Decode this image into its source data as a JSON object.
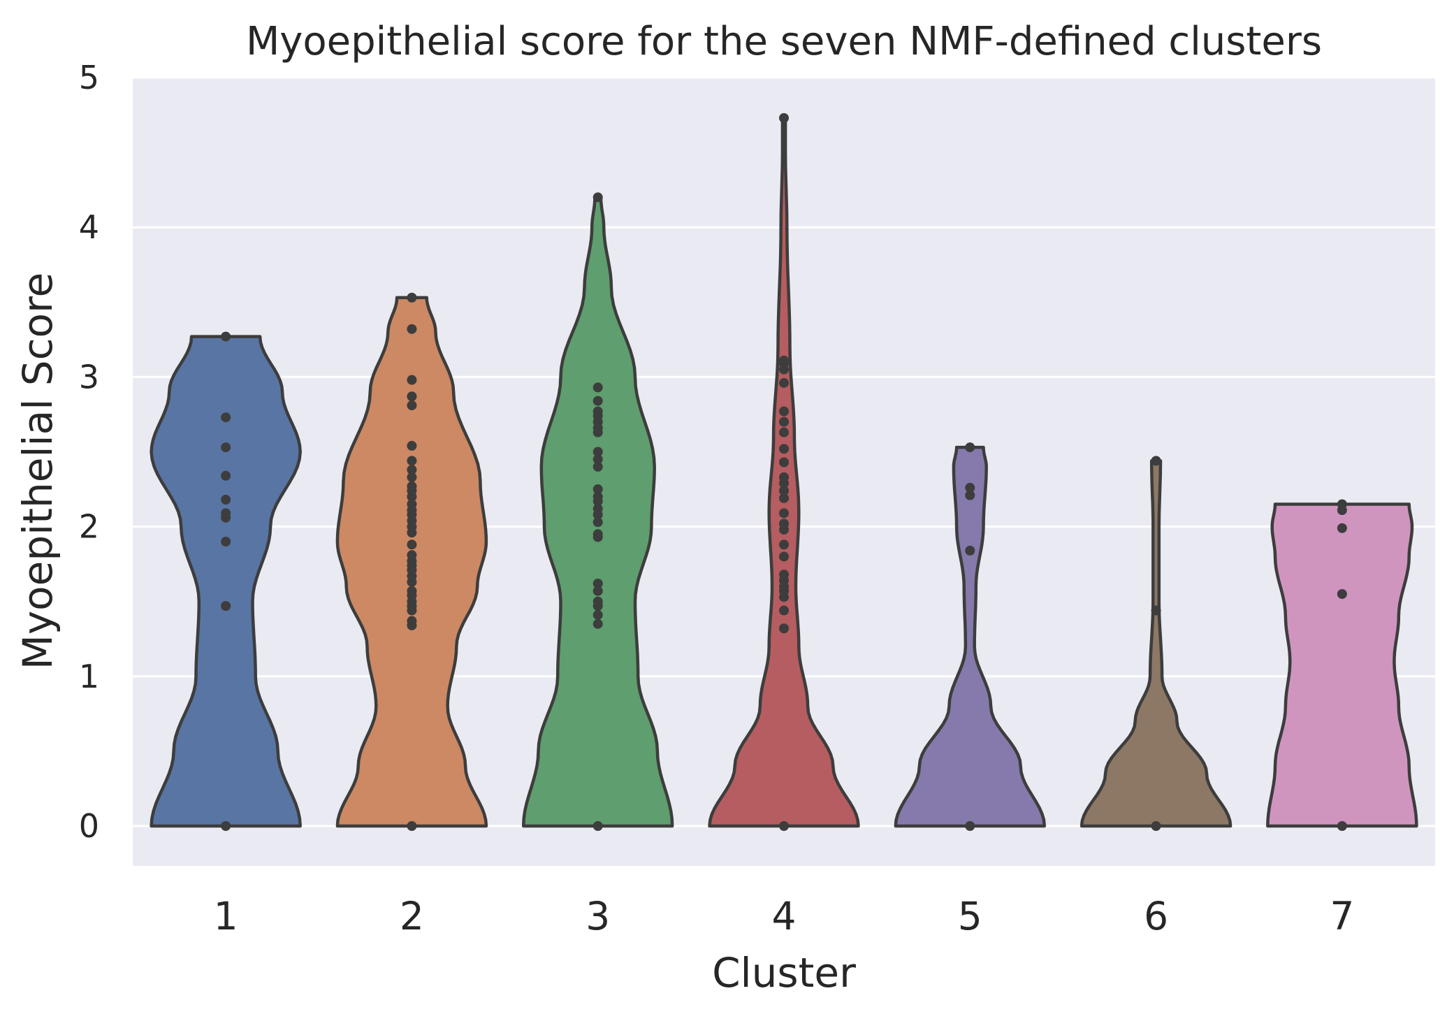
{
  "chart_data": {
    "type": "violin",
    "title": "Myoepithelial score for the seven NMF-defined clusters",
    "xlabel": "Cluster",
    "ylabel": "Myoepithelial Score",
    "categories": [
      "1",
      "2",
      "3",
      "4",
      "5",
      "6",
      "7"
    ],
    "yticks": [
      "0",
      "1",
      "2",
      "3",
      "4",
      "5"
    ],
    "ylim": [
      -0.26,
      5
    ],
    "grid": true,
    "background_color": "#eaeaf2",
    "grid_color": "#ffffff",
    "outline_color": "#3d3d3d",
    "point_color": "#3d3d3d",
    "violins": [
      {
        "category": "1",
        "color": "#5875a4",
        "profile": [
          [
            0,
            0.5
          ],
          [
            0.5,
            0.35
          ],
          [
            1.0,
            0.2
          ],
          [
            1.5,
            0.18
          ],
          [
            2.0,
            0.3
          ],
          [
            2.5,
            0.5
          ],
          [
            2.9,
            0.38
          ],
          [
            3.27,
            0.23
          ]
        ],
        "points": [
          0,
          1.47,
          1.9,
          2.06,
          2.09,
          2.18,
          2.34,
          2.53,
          2.73,
          3.27
        ]
      },
      {
        "category": "2",
        "color": "#cc8963",
        "profile": [
          [
            0,
            0.5
          ],
          [
            0.4,
            0.36
          ],
          [
            0.8,
            0.24
          ],
          [
            1.2,
            0.3
          ],
          [
            1.6,
            0.44
          ],
          [
            1.9,
            0.5
          ],
          [
            2.3,
            0.46
          ],
          [
            2.9,
            0.28
          ],
          [
            3.3,
            0.16
          ],
          [
            3.53,
            0.1
          ]
        ],
        "points": [
          0,
          1.34,
          1.37,
          1.44,
          1.47,
          1.5,
          1.54,
          1.57,
          1.63,
          1.67,
          1.71,
          1.74,
          1.77,
          1.81,
          1.88,
          1.96,
          2.0,
          2.04,
          2.08,
          2.11,
          2.15,
          2.2,
          2.24,
          2.27,
          2.33,
          2.38,
          2.44,
          2.54,
          2.81,
          2.87,
          2.98,
          3.32,
          3.53
        ]
      },
      {
        "category": "3",
        "color": "#5f9e6e",
        "profile": [
          [
            0,
            0.5
          ],
          [
            0.5,
            0.4
          ],
          [
            1.0,
            0.27
          ],
          [
            1.5,
            0.25
          ],
          [
            2.0,
            0.36
          ],
          [
            2.4,
            0.38
          ],
          [
            3.0,
            0.25
          ],
          [
            3.6,
            0.09
          ],
          [
            4.0,
            0.04
          ],
          [
            4.2,
            0.02
          ]
        ],
        "points": [
          0,
          1.35,
          1.41,
          1.47,
          1.5,
          1.57,
          1.62,
          1.93,
          1.95,
          2.03,
          2.08,
          2.12,
          2.17,
          2.2,
          2.25,
          2.4,
          2.45,
          2.5,
          2.63,
          2.66,
          2.7,
          2.74,
          2.77,
          2.84,
          2.93,
          4.2
        ]
      },
      {
        "category": "4",
        "color": "#b55d60",
        "profile": [
          [
            0,
            0.5
          ],
          [
            0.4,
            0.33
          ],
          [
            0.8,
            0.16
          ],
          [
            1.2,
            0.1
          ],
          [
            1.6,
            0.08
          ],
          [
            2.1,
            0.1
          ],
          [
            2.6,
            0.07
          ],
          [
            3.2,
            0.04
          ],
          [
            4.0,
            0.02
          ],
          [
            4.5,
            0.01
          ],
          [
            4.73,
            0.01
          ]
        ],
        "points": [
          0,
          1.32,
          1.44,
          1.53,
          1.57,
          1.6,
          1.64,
          1.68,
          1.8,
          1.88,
          1.98,
          2.02,
          2.09,
          2.19,
          2.24,
          2.29,
          2.33,
          2.43,
          2.52,
          2.63,
          2.7,
          2.77,
          2.96,
          3.05,
          3.09,
          3.11,
          4.73
        ]
      },
      {
        "category": "5",
        "color": "#857aab",
        "profile": [
          [
            0,
            0.5
          ],
          [
            0.4,
            0.34
          ],
          [
            0.8,
            0.14
          ],
          [
            1.2,
            0.03
          ],
          [
            1.6,
            0.04
          ],
          [
            2.0,
            0.09
          ],
          [
            2.4,
            0.11
          ],
          [
            2.53,
            0.09
          ]
        ],
        "points": [
          0,
          1.84,
          2.21,
          2.26,
          2.53
        ]
      },
      {
        "category": "6",
        "color": "#8d7866",
        "profile": [
          [
            0,
            0.5
          ],
          [
            0.35,
            0.34
          ],
          [
            0.7,
            0.14
          ],
          [
            1.0,
            0.04
          ],
          [
            1.5,
            0.02
          ],
          [
            2.0,
            0.02
          ],
          [
            2.44,
            0.03
          ]
        ],
        "points": [
          0,
          1.44,
          2.44
        ]
      },
      {
        "category": "7",
        "color": "#d095bf",
        "profile": [
          [
            0,
            0.5
          ],
          [
            0.4,
            0.45
          ],
          [
            0.8,
            0.38
          ],
          [
            1.1,
            0.35
          ],
          [
            1.4,
            0.38
          ],
          [
            1.8,
            0.45
          ],
          [
            2.0,
            0.47
          ],
          [
            2.15,
            0.45
          ]
        ],
        "points": [
          0,
          1.55,
          1.99,
          2.11,
          2.15
        ]
      }
    ]
  }
}
